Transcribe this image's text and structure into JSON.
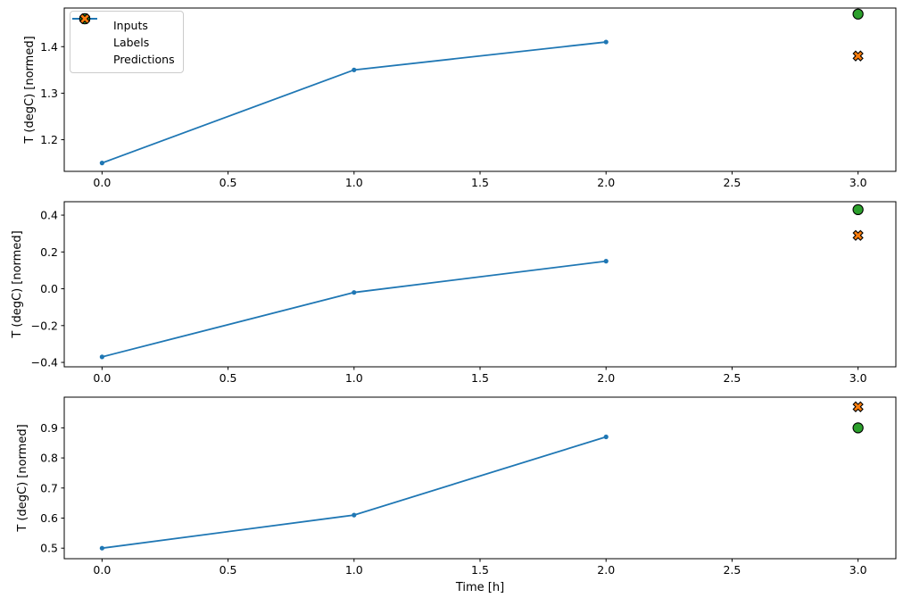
{
  "figure": {
    "xlabel": "Time [h]",
    "background": "#ffffff"
  },
  "legend": {
    "position": "upper-left",
    "items": [
      {
        "label": "Inputs",
        "marker": "line",
        "color": "#1f77b4"
      },
      {
        "label": "Labels",
        "marker": "circle",
        "color": "#2ca02c"
      },
      {
        "label": "Predictions",
        "marker": "X",
        "color": "#ff7f0e"
      }
    ]
  },
  "colors": {
    "inputs": "#1f77b4",
    "labels": "#2ca02c",
    "predictions": "#ff7f0e",
    "marker_edge": "#000000",
    "legend_border": "#cccccc",
    "spine": "#000000"
  },
  "chart_data": [
    {
      "type": "line",
      "title": "",
      "xlabel": "",
      "ylabel": "T (degC) [normed]",
      "grid": false,
      "xlim": [
        -0.15,
        3.15
      ],
      "ylim": [
        1.132,
        1.483
      ],
      "xticks": [
        0.0,
        0.5,
        1.0,
        1.5,
        2.0,
        2.5,
        3.0
      ],
      "xtick_labels": [
        "0.0",
        "0.5",
        "1.0",
        "1.5",
        "2.0",
        "2.5",
        "3.0"
      ],
      "yticks": [
        1.2,
        1.3,
        1.4
      ],
      "ytick_labels": [
        "1.2",
        "1.3",
        "1.4"
      ],
      "series": [
        {
          "name": "Inputs",
          "marker": "line",
          "color": "#1f77b4",
          "x": [
            0,
            1,
            2
          ],
          "y": [
            1.15,
            1.35,
            1.41
          ]
        },
        {
          "name": "Labels",
          "marker": "circle",
          "color": "#2ca02c",
          "x": [
            3
          ],
          "y": [
            1.47
          ]
        },
        {
          "name": "Predictions",
          "marker": "X",
          "color": "#ff7f0e",
          "x": [
            3
          ],
          "y": [
            1.38
          ]
        }
      ]
    },
    {
      "type": "line",
      "title": "",
      "xlabel": "",
      "ylabel": "T (degC) [normed]",
      "grid": false,
      "xlim": [
        -0.15,
        3.15
      ],
      "ylim": [
        -0.424,
        0.473
      ],
      "xticks": [
        0.0,
        0.5,
        1.0,
        1.5,
        2.0,
        2.5,
        3.0
      ],
      "xtick_labels": [
        "0.0",
        "0.5",
        "1.0",
        "1.5",
        "2.0",
        "2.5",
        "3.0"
      ],
      "yticks": [
        -0.4,
        -0.2,
        0.0,
        0.2,
        0.4
      ],
      "ytick_labels": [
        "−0.4",
        "−0.2",
        "0.0",
        "0.2",
        "0.4"
      ],
      "series": [
        {
          "name": "Inputs",
          "marker": "line",
          "color": "#1f77b4",
          "x": [
            0,
            1,
            2
          ],
          "y": [
            -0.37,
            -0.02,
            0.15
          ]
        },
        {
          "name": "Labels",
          "marker": "circle",
          "color": "#2ca02c",
          "x": [
            3
          ],
          "y": [
            0.43
          ]
        },
        {
          "name": "Predictions",
          "marker": "X",
          "color": "#ff7f0e",
          "x": [
            3
          ],
          "y": [
            0.29
          ]
        }
      ]
    },
    {
      "type": "line",
      "title": "",
      "xlabel": "Time [h]",
      "ylabel": "T (degC) [normed]",
      "grid": false,
      "xlim": [
        -0.15,
        3.15
      ],
      "ylim": [
        0.465,
        1.002
      ],
      "xticks": [
        0.0,
        0.5,
        1.0,
        1.5,
        2.0,
        2.5,
        3.0
      ],
      "xtick_labels": [
        "0.0",
        "0.5",
        "1.0",
        "1.5",
        "2.0",
        "2.5",
        "3.0"
      ],
      "yticks": [
        0.5,
        0.6,
        0.7,
        0.8,
        0.9
      ],
      "ytick_labels": [
        "0.5",
        "0.6",
        "0.7",
        "0.8",
        "0.9"
      ],
      "series": [
        {
          "name": "Inputs",
          "marker": "line",
          "color": "#1f77b4",
          "x": [
            0,
            1,
            2
          ],
          "y": [
            0.5,
            0.61,
            0.87
          ]
        },
        {
          "name": "Labels",
          "marker": "circle",
          "color": "#2ca02c",
          "x": [
            3
          ],
          "y": [
            0.9
          ]
        },
        {
          "name": "Predictions",
          "marker": "X",
          "color": "#ff7f0e",
          "x": [
            3
          ],
          "y": [
            0.97
          ]
        }
      ]
    }
  ]
}
